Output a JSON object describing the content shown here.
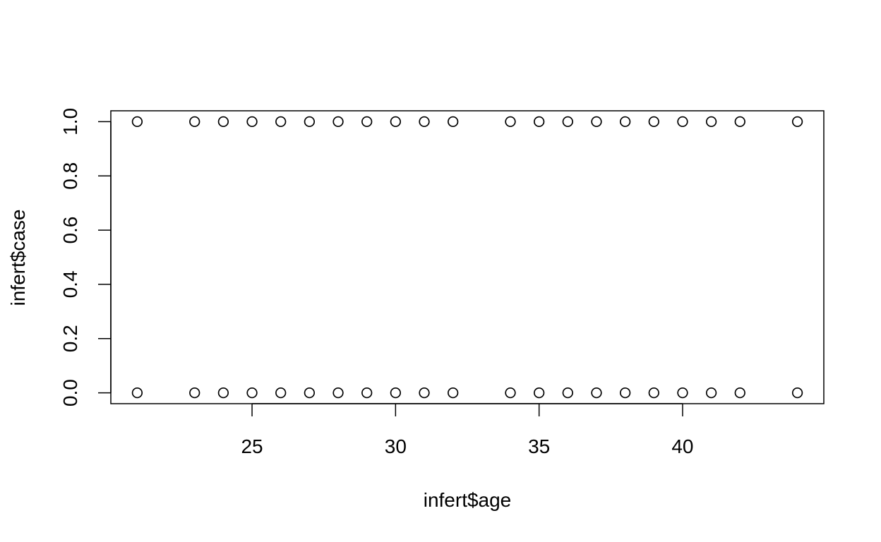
{
  "chart_data": {
    "type": "scatter",
    "title": "",
    "xlabel": "infert$age",
    "ylabel": "infert$case",
    "xlim": [
      20.08,
      44.92
    ],
    "ylim": [
      -0.04,
      1.04
    ],
    "x_ticks": [
      25,
      30,
      35,
      40
    ],
    "x_tick_labels": [
      "25",
      "30",
      "35",
      "40"
    ],
    "y_ticks": [
      0.0,
      0.2,
      0.4,
      0.6,
      0.8,
      1.0
    ],
    "y_tick_labels": [
      "0.0",
      "0.2",
      "0.4",
      "0.6",
      "0.8",
      "1.0"
    ],
    "grid": false,
    "marker": "open-circle",
    "points": [
      {
        "x": 21,
        "y": 1
      },
      {
        "x": 23,
        "y": 1
      },
      {
        "x": 24,
        "y": 1
      },
      {
        "x": 25,
        "y": 1
      },
      {
        "x": 26,
        "y": 1
      },
      {
        "x": 27,
        "y": 1
      },
      {
        "x": 28,
        "y": 1
      },
      {
        "x": 29,
        "y": 1
      },
      {
        "x": 30,
        "y": 1
      },
      {
        "x": 31,
        "y": 1
      },
      {
        "x": 32,
        "y": 1
      },
      {
        "x": 34,
        "y": 1
      },
      {
        "x": 35,
        "y": 1
      },
      {
        "x": 36,
        "y": 1
      },
      {
        "x": 37,
        "y": 1
      },
      {
        "x": 38,
        "y": 1
      },
      {
        "x": 39,
        "y": 1
      },
      {
        "x": 40,
        "y": 1
      },
      {
        "x": 41,
        "y": 1
      },
      {
        "x": 42,
        "y": 1
      },
      {
        "x": 44,
        "y": 1
      },
      {
        "x": 21,
        "y": 0
      },
      {
        "x": 23,
        "y": 0
      },
      {
        "x": 24,
        "y": 0
      },
      {
        "x": 25,
        "y": 0
      },
      {
        "x": 26,
        "y": 0
      },
      {
        "x": 27,
        "y": 0
      },
      {
        "x": 28,
        "y": 0
      },
      {
        "x": 29,
        "y": 0
      },
      {
        "x": 30,
        "y": 0
      },
      {
        "x": 31,
        "y": 0
      },
      {
        "x": 32,
        "y": 0
      },
      {
        "x": 34,
        "y": 0
      },
      {
        "x": 35,
        "y": 0
      },
      {
        "x": 36,
        "y": 0
      },
      {
        "x": 37,
        "y": 0
      },
      {
        "x": 38,
        "y": 0
      },
      {
        "x": 39,
        "y": 0
      },
      {
        "x": 40,
        "y": 0
      },
      {
        "x": 41,
        "y": 0
      },
      {
        "x": 42,
        "y": 0
      },
      {
        "x": 44,
        "y": 0
      }
    ],
    "colors": {
      "marker": "#000000",
      "axis": "#000000",
      "background": "#ffffff"
    }
  }
}
